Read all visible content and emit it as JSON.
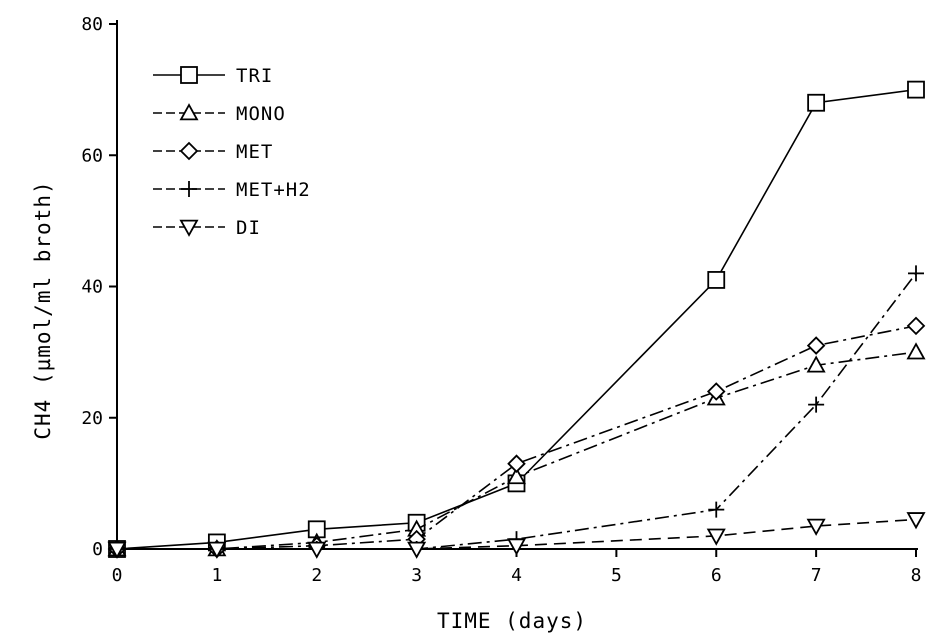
{
  "chart_data": {
    "type": "line",
    "xlabel": "TIME (days)",
    "ylabel": "CH4 (µmol/ml broth)",
    "x_ticks": [
      "0",
      "1",
      "2",
      "3",
      "4",
      "5",
      "6",
      "7",
      "8"
    ],
    "y_ticks": [
      "0",
      "20",
      "40",
      "60",
      "80"
    ],
    "xlim": [
      0,
      8
    ],
    "ylim": [
      0,
      80
    ],
    "grid": false,
    "legend_position": "top-left",
    "series": [
      {
        "name": "TRI",
        "marker": "square",
        "dash": "solid",
        "x": [
          0,
          1,
          2,
          3,
          4,
          6,
          7,
          8
        ],
        "y": [
          0,
          1,
          3,
          4,
          10,
          41,
          68,
          70
        ]
      },
      {
        "name": "MONO",
        "marker": "triangle-up",
        "dash": "dashdot",
        "x": [
          0,
          1,
          2,
          3,
          4,
          6,
          7,
          8
        ],
        "y": [
          0,
          0,
          1,
          3,
          11,
          23,
          28,
          30
        ]
      },
      {
        "name": "MET",
        "marker": "diamond",
        "dash": "dashdot",
        "x": [
          0,
          1,
          2,
          3,
          4,
          6,
          7,
          8
        ],
        "y": [
          0,
          0,
          0.5,
          1.5,
          13,
          24,
          31,
          34
        ]
      },
      {
        "name": "MET+H2",
        "marker": "plus",
        "dash": "dashdot",
        "x": [
          0,
          1,
          2,
          3,
          4,
          6,
          7,
          8
        ],
        "y": [
          0,
          0,
          0,
          0,
          1.5,
          6,
          22,
          42
        ]
      },
      {
        "name": "DI",
        "marker": "triangle-down",
        "dash": "dashed",
        "x": [
          0,
          1,
          2,
          3,
          4,
          6,
          7,
          8
        ],
        "y": [
          0,
          0,
          0,
          0,
          0.5,
          2,
          3.5,
          4.5
        ]
      }
    ]
  }
}
